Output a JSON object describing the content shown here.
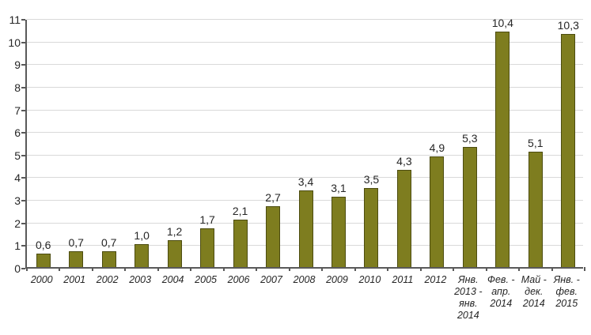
{
  "chart_data": {
    "type": "bar",
    "categories": [
      "2000",
      "2001",
      "2002",
      "2003",
      "2004",
      "2005",
      "2006",
      "2007",
      "2008",
      "2009",
      "2010",
      "2011",
      "2012",
      "Янв.\n2013 -\nянв.\n2014",
      "Фев. -\nапр.\n2014",
      "Май -\nдек.\n2014",
      "Янв. -\nфев.\n2015"
    ],
    "values": [
      0.6,
      0.7,
      0.7,
      1.0,
      1.2,
      1.7,
      2.1,
      2.7,
      3.4,
      3.1,
      3.5,
      4.3,
      4.9,
      5.3,
      10.4,
      5.1,
      10.3
    ],
    "value_labels": [
      "0,6",
      "0,7",
      "0,7",
      "1,0",
      "1,2",
      "1,7",
      "2,1",
      "2,7",
      "3,4",
      "3,1",
      "3,5",
      "4,3",
      "4,9",
      "5,3",
      "10,4",
      "5,1",
      "10,3"
    ],
    "title": "",
    "xlabel": "",
    "ylabel": "",
    "ylim": [
      0,
      11
    ],
    "y_ticks": [
      0,
      1,
      2,
      3,
      4,
      5,
      6,
      7,
      8,
      9,
      10,
      11
    ],
    "grid": true,
    "legend": false,
    "colors": {
      "bar_fill": "#7E7D1F",
      "bar_border": "#4C4C10",
      "gridline": "#D9D9D9",
      "axis": "#595959",
      "text": "#262626"
    }
  }
}
